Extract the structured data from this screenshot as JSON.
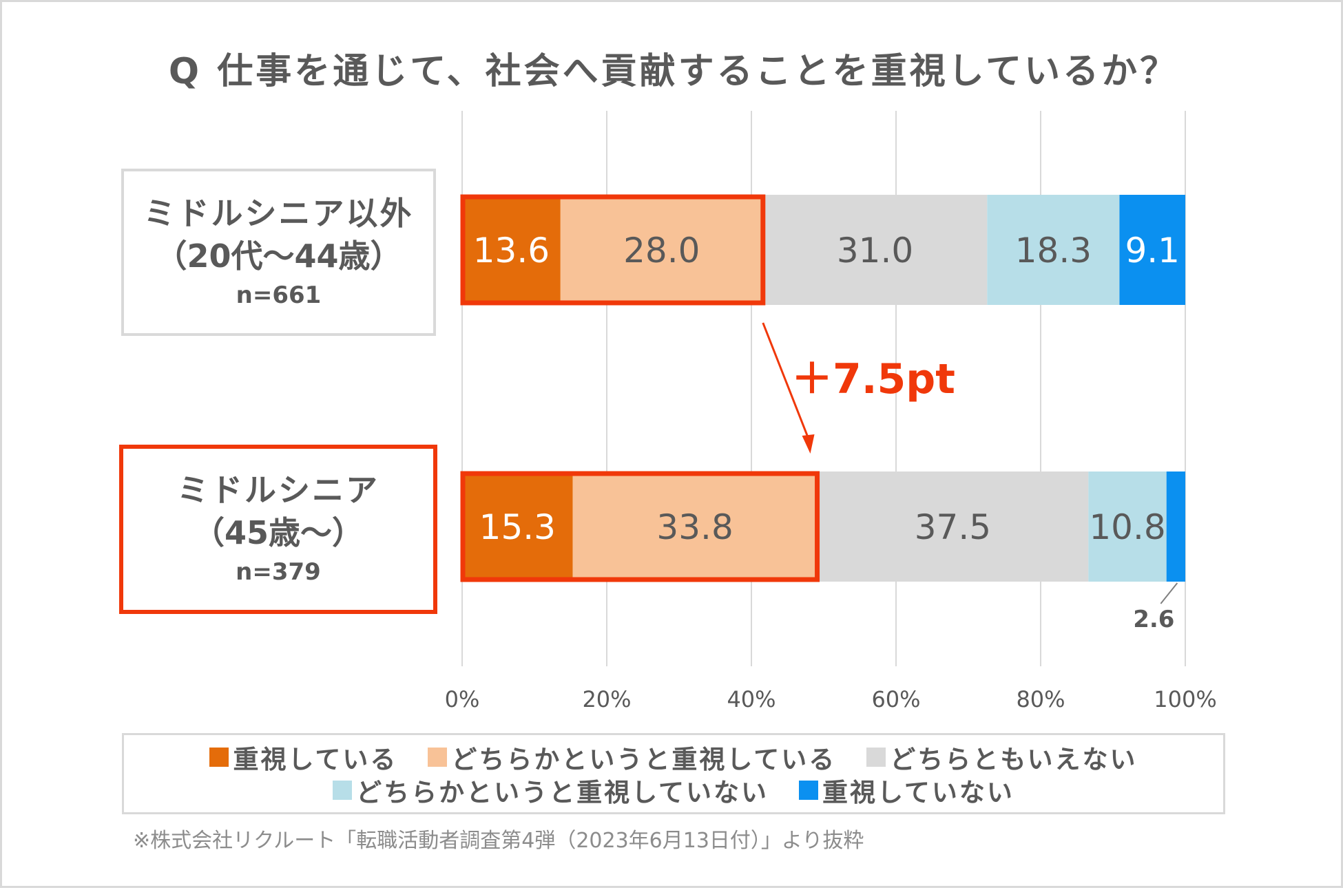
{
  "chart_data": {
    "type": "bar",
    "orientation": "horizontal",
    "stacked": true,
    "title": "Q 仕事を通じて、社会へ貢献することを重視しているか？",
    "xlim": [
      0,
      100
    ],
    "x_tick_labels": [
      "0%",
      "20%",
      "40%",
      "60%",
      "80%",
      "100%"
    ],
    "grid": true,
    "legend_position": "bottom",
    "categories": [
      {
        "line1": "ミドルシニア以外",
        "line2": "（20代〜44歳）",
        "n": "n=661"
      },
      {
        "line1": "ミドルシニア",
        "line2": "（45歳〜）",
        "n": "n=379"
      }
    ],
    "series": [
      {
        "name": "重視している",
        "color": "#e46c0a",
        "values": [
          13.6,
          15.3
        ],
        "labels": [
          "13.6",
          "15.3"
        ],
        "label_color": "#ffffff"
      },
      {
        "name": "どちらかというと重視している",
        "color": "#f8c297",
        "values": [
          28.0,
          33.8
        ],
        "labels": [
          "28.0",
          "33.8"
        ],
        "label_color": "#595959"
      },
      {
        "name": "どちらともいえない",
        "color": "#d9d9d9",
        "values": [
          31.0,
          37.5
        ],
        "labels": [
          "31.0",
          "37.5"
        ],
        "label_color": "#595959"
      },
      {
        "name": "どちらかというと重視していない",
        "color": "#b7dee8",
        "values": [
          18.3,
          10.8
        ],
        "labels": [
          "18.3",
          "10.8"
        ],
        "label_color": "#595959"
      },
      {
        "name": "重視していない",
        "color": "#0b90f0",
        "values": [
          9.1,
          2.6
        ],
        "labels": [
          "9.1",
          ""
        ],
        "label_color": "#ffffff"
      }
    ],
    "callout_label": "2.6",
    "annotation": "＋7.5pt",
    "highlight_color": "#f0380a"
  },
  "source_note": "※株式会社リクルート「転職活動者調査第4弾（2023年6月13日付）」より抜粋"
}
